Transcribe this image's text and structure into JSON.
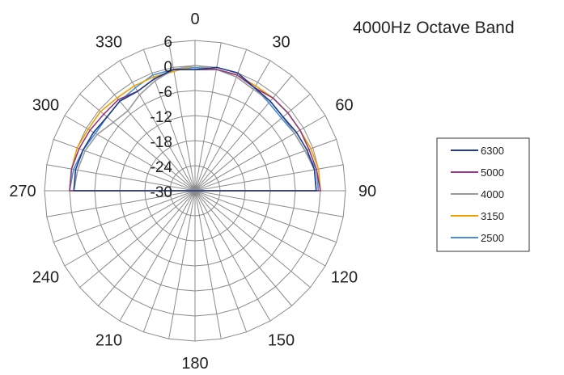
{
  "chart_data": {
    "type": "radar",
    "title": "4000Hz Octave Band",
    "angle_labels": [
      "0",
      "30",
      "60",
      "90",
      "120",
      "150",
      "180",
      "210",
      "240",
      "270",
      "300",
      "330"
    ],
    "angle_step_deg": 10,
    "radial_ticks": [
      "6",
      "0",
      "-6",
      "-12",
      "-18",
      "-24",
      "-30"
    ],
    "radial_range": [
      -30,
      6
    ],
    "grid": true,
    "legend_position": "right",
    "angles_deg": [
      270,
      280,
      290,
      300,
      310,
      320,
      330,
      340,
      350,
      0,
      10,
      20,
      30,
      40,
      50,
      60,
      70,
      80,
      90
    ],
    "series": [
      {
        "name": "6300",
        "color": "#1f3c88",
        "values": [
          -1,
          -1,
          -1.5,
          -2,
          -2.5,
          -2,
          -2.5,
          -1.5,
          -0.5,
          -1,
          0,
          0,
          -1.5,
          -2,
          -2.5,
          -2,
          -1.5,
          -1,
          -1
        ]
      },
      {
        "name": "5000",
        "color": "#8e3a80",
        "values": [
          0,
          0,
          -0.5,
          -1,
          -1.5,
          -1.5,
          -2.5,
          -1.5,
          -0.5,
          -1,
          -0.5,
          -0.5,
          -1.5,
          -1,
          -1,
          -1,
          -1,
          -0.5,
          0
        ]
      },
      {
        "name": "4000",
        "color": "#9a9a9a",
        "values": [
          -1,
          -1.5,
          -2,
          -3,
          -4.5,
          -5,
          -3.5,
          -2,
          -0.5,
          0,
          -0.5,
          -1,
          -2,
          -2,
          -2.5,
          -2.5,
          -2,
          -1,
          -1
        ]
      },
      {
        "name": "3150",
        "color": "#f0a000",
        "values": [
          0,
          0,
          0,
          -0.5,
          -0.5,
          -1,
          -1,
          -1,
          -1,
          0,
          -0.5,
          -0.5,
          -1,
          -1,
          -1,
          -1,
          -0.5,
          0,
          0
        ]
      },
      {
        "name": "2500",
        "color": "#4a90d9",
        "values": [
          0,
          -0.5,
          -1.5,
          -2.5,
          -2.5,
          -2,
          -1.5,
          -0.5,
          -0.5,
          -0.5,
          -0.5,
          -0.5,
          -1.5,
          -2.5,
          -3,
          -2.5,
          -2,
          -0.5,
          -0.5
        ]
      }
    ]
  }
}
